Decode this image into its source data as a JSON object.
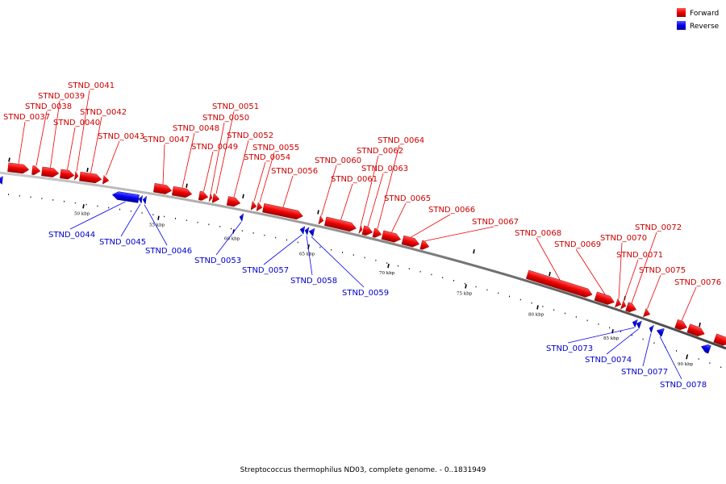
{
  "legend": {
    "forward": "Forward",
    "reverse": "Reverse"
  },
  "colors": {
    "forward": "#ee0000",
    "reverse": "#0000ee",
    "forward_label": "#cc0000",
    "reverse_label": "#0000cc",
    "backbone": "#777777"
  },
  "caption": "Streptococcus thermophilus ND03, complete genome. - 0..1831949",
  "tick_labels": [
    "50 kbp",
    "55 kbp",
    "60 kbp",
    "65 kbp",
    "70 kbp",
    "75 kbp",
    "80 kbp",
    "85 kbp",
    "90 kbp"
  ],
  "genes": [
    {
      "name": "STND_0037",
      "strand": "forward"
    },
    {
      "name": "STND_0038",
      "strand": "forward"
    },
    {
      "name": "STND_0039",
      "strand": "forward"
    },
    {
      "name": "STND_0040",
      "strand": "forward"
    },
    {
      "name": "STND_0041",
      "strand": "forward"
    },
    {
      "name": "STND_0042",
      "strand": "forward"
    },
    {
      "name": "STND_0043",
      "strand": "forward"
    },
    {
      "name": "STND_0044",
      "strand": "reverse"
    },
    {
      "name": "STND_0045",
      "strand": "reverse"
    },
    {
      "name": "STND_0046",
      "strand": "reverse"
    },
    {
      "name": "STND_0047",
      "strand": "forward"
    },
    {
      "name": "STND_0048",
      "strand": "forward"
    },
    {
      "name": "STND_0049",
      "strand": "forward"
    },
    {
      "name": "STND_0050",
      "strand": "forward"
    },
    {
      "name": "STND_0051",
      "strand": "forward"
    },
    {
      "name": "STND_0052",
      "strand": "forward"
    },
    {
      "name": "STND_0053",
      "strand": "reverse"
    },
    {
      "name": "STND_0054",
      "strand": "forward"
    },
    {
      "name": "STND_0055",
      "strand": "forward"
    },
    {
      "name": "STND_0056",
      "strand": "forward"
    },
    {
      "name": "STND_0057",
      "strand": "reverse"
    },
    {
      "name": "STND_0058",
      "strand": "reverse"
    },
    {
      "name": "STND_0059",
      "strand": "reverse"
    },
    {
      "name": "STND_0060",
      "strand": "forward"
    },
    {
      "name": "STND_0061",
      "strand": "forward"
    },
    {
      "name": "STND_0062",
      "strand": "forward"
    },
    {
      "name": "STND_0063",
      "strand": "forward"
    },
    {
      "name": "STND_0064",
      "strand": "forward"
    },
    {
      "name": "STND_0065",
      "strand": "forward"
    },
    {
      "name": "STND_0066",
      "strand": "forward"
    },
    {
      "name": "STND_0067",
      "strand": "forward"
    },
    {
      "name": "STND_0068",
      "strand": "forward"
    },
    {
      "name": "STND_0069",
      "strand": "forward"
    },
    {
      "name": "STND_0070",
      "strand": "forward"
    },
    {
      "name": "STND_0071",
      "strand": "forward"
    },
    {
      "name": "STND_0072",
      "strand": "forward"
    },
    {
      "name": "STND_0073",
      "strand": "reverse"
    },
    {
      "name": "STND_0074",
      "strand": "reverse"
    },
    {
      "name": "STND_0075",
      "strand": "forward"
    },
    {
      "name": "STND_0076",
      "strand": "forward"
    },
    {
      "name": "STND_0077",
      "strand": "reverse"
    },
    {
      "name": "STND_0078",
      "strand": "reverse"
    }
  ]
}
